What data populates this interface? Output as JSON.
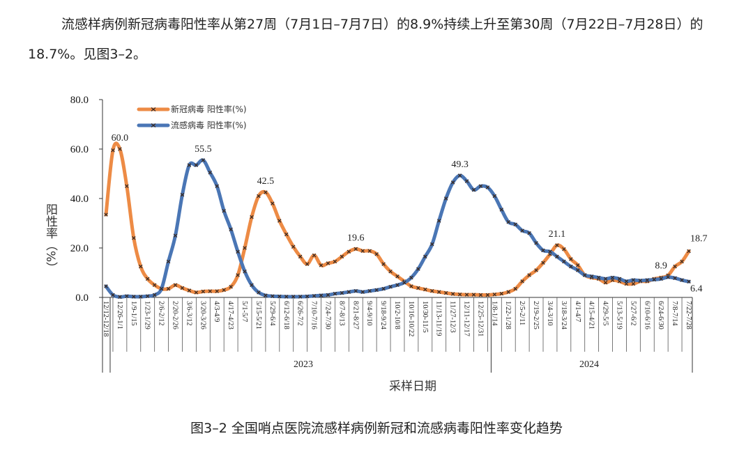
{
  "document": {
    "paragraph": "流感样病例新冠病毒阳性率从第27周（7月1日–7月7日）的8.9%持续上升至第30周（7月22日–7月28日）的18.7%。见图3–2。",
    "caption": "图3–2 全国哨点医院流感样病例新冠和流感病毒阳性率变化趋势"
  },
  "chart_data": {
    "type": "line",
    "title": "",
    "xlabel": "采样日期",
    "ylabel": "阳性率（%）",
    "ylim": [
      0,
      80
    ],
    "yticks": [
      "0.0",
      "20.0",
      "40.0",
      "60.0",
      "80.0"
    ],
    "grid": false,
    "legend_position": "top-left",
    "year_groups": [
      {
        "label": "2023"
      },
      {
        "label": "2024"
      }
    ],
    "x_tick_labels": [
      "12/12-12/18",
      "12/26-1/1",
      "1/9-1/15",
      "1/23-1/29",
      "2/6-2/12",
      "2/20-2/26",
      "3/6-3/12",
      "3/20-3/26",
      "4/3-4/9",
      "4/17-4/23",
      "5/1-5/7",
      "5/15-5/21",
      "5/29-6/4",
      "6/12-6/18",
      "6/26-7/2",
      "7/10-7/16",
      "7/24-7/30",
      "8/7-8/13",
      "8/21-8/27",
      "9/4-9/10",
      "9/18-9/24",
      "10/2-10/8",
      "10/16-10/22",
      "10/30-11/5",
      "11/13-11/19",
      "11/27-12/3",
      "12/11-12/17",
      "12/25-12/31",
      "1/8-1/14",
      "1/22-1/28",
      "2/5-2/11",
      "2/19-2/25",
      "3/4-3/10",
      "3/18-3/24",
      "4/1-4/7",
      "4/15-4/21",
      "4/29-5/5",
      "5/13-5/19",
      "5/27-6/2",
      "6/10-6/16",
      "6/24-6/30",
      "7/8-7/14",
      "7/22-7/28"
    ],
    "series": [
      {
        "name": "新冠病毒 阳性率(%)",
        "color": "#ED8B45",
        "values": [
          33.5,
          59.5,
          60.0,
          45,
          24,
          12.5,
          7.5,
          5,
          3.5,
          3.5,
          5,
          3.8,
          2.8,
          2,
          2.4,
          2.5,
          2.5,
          3,
          4.3,
          9,
          20,
          32.5,
          41,
          42.5,
          38,
          31,
          25.5,
          20.5,
          16.5,
          13.5,
          17,
          13,
          13.8,
          14.5,
          16.5,
          18.5,
          19.6,
          18.8,
          18.8,
          17.5,
          13.5,
          10.5,
          8.5,
          6.5,
          4.5,
          3.8,
          3.2,
          2.6,
          2.2,
          1.8,
          1.4,
          1.2,
          1.1,
          1.1,
          1,
          1,
          1.2,
          1.5,
          2.2,
          3.5,
          6.5,
          9,
          11,
          14,
          17.5,
          21.1,
          19.5,
          15.5,
          13,
          9,
          8,
          7.5,
          6,
          7,
          6.5,
          5.5,
          5.5,
          6.5,
          6.5,
          7.5,
          8,
          8.9,
          12.5,
          14.5,
          18.7
        ],
        "data_labels": [
          {
            "index": 2,
            "text": "60.0"
          },
          {
            "index": 23,
            "text": "42.5"
          },
          {
            "index": 36,
            "text": "19.6"
          },
          {
            "index": 65,
            "text": "21.1"
          },
          {
            "index": 81,
            "text": "8.9"
          },
          {
            "index": 84,
            "text": "18.7"
          }
        ]
      },
      {
        "name": "流感病毒 阳性率(%)",
        "color": "#4A76B5",
        "values": [
          4.5,
          1,
          0.2,
          0.5,
          0.3,
          0.3,
          0.5,
          1,
          3.5,
          14.5,
          25,
          41.5,
          53.5,
          53.5,
          55.5,
          50.5,
          45,
          35,
          27.5,
          18.5,
          10.5,
          5,
          2,
          0.8,
          0.5,
          0.4,
          0.3,
          0.3,
          0.3,
          0.4,
          0.6,
          0.8,
          1,
          1.5,
          1.8,
          2.2,
          2.6,
          2.2,
          2.6,
          3,
          3.5,
          4.3,
          5,
          6,
          8,
          11.5,
          16.5,
          21.5,
          31,
          40,
          46.5,
          49.3,
          47,
          43.5,
          45,
          44.5,
          41,
          35.5,
          30.5,
          29.5,
          27,
          26,
          22,
          19,
          18.5,
          16.5,
          14.5,
          12.5,
          11,
          9,
          8.5,
          8,
          7.5,
          8,
          7.5,
          6.5,
          7,
          6.8,
          7,
          7.2,
          7.5,
          8.2,
          7.8,
          7,
          6.4
        ],
        "data_labels": [
          {
            "index": 14,
            "text": "55.5"
          },
          {
            "index": 51,
            "text": "49.3"
          },
          {
            "index": 84,
            "text": "6.4"
          }
        ]
      }
    ]
  }
}
